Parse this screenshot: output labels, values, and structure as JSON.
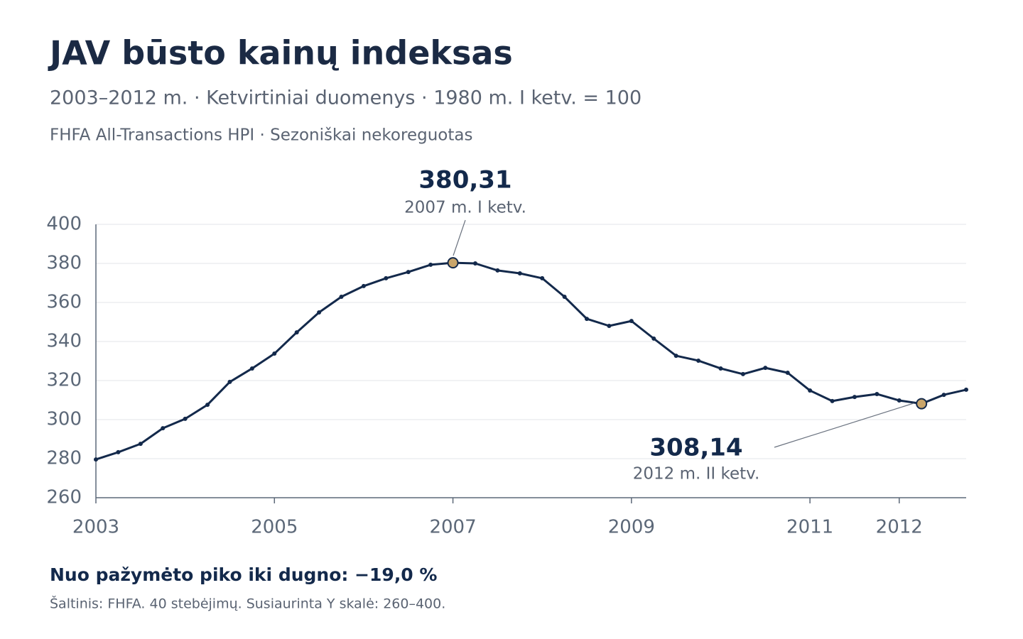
{
  "chart_data": {
    "type": "line",
    "title": "JAV būsto kainų indeksas",
    "subtitle": "2003–2012 m. · Ketvirtiniai duomenys · 1980 m. I ketv. = 100",
    "subtitle2": "FHFA All-Transactions HPI · Sezoniškai nekoreguotas",
    "x": [
      2003,
      2003.25,
      2003.5,
      2003.75,
      2004,
      2004.25,
      2004.5,
      2004.75,
      2005,
      2005.25,
      2005.5,
      2005.75,
      2006,
      2006.25,
      2006.5,
      2006.75,
      2007,
      2007.25,
      2007.5,
      2007.75,
      2008,
      2008.25,
      2008.5,
      2008.75,
      2009,
      2009.25,
      2009.5,
      2009.75,
      2010,
      2010.25,
      2010.5,
      2010.75,
      2011,
      2011.25,
      2011.5,
      2011.75,
      2012,
      2012.25,
      2012.5,
      2012.75
    ],
    "values": [
      279.6,
      283.3,
      287.6,
      295.6,
      300.4,
      307.6,
      319.3,
      326.2,
      333.8,
      344.7,
      354.9,
      362.9,
      368.4,
      372.4,
      375.6,
      379.3,
      380.31,
      380.0,
      376.4,
      374.9,
      372.4,
      362.9,
      351.6,
      348.0,
      350.5,
      341.5,
      332.7,
      330.2,
      326.2,
      323.3,
      326.5,
      324.0,
      314.9,
      309.5,
      311.6,
      313.1,
      309.8,
      308.14,
      312.7,
      315.3
    ],
    "color": "#13294b",
    "xlim": [
      2003,
      2012.75
    ],
    "xticks": [
      2003,
      2005,
      2007,
      2009,
      2011,
      2012
    ],
    "ylim": [
      260,
      400
    ],
    "yticks": [
      260,
      280,
      300,
      320,
      340,
      360,
      380,
      400
    ],
    "grid": true,
    "annotations": [
      {
        "x": 2007,
        "y": 380.31,
        "label": "380,31",
        "sublabel": "2007 m. I ketv."
      },
      {
        "x": 2012.25,
        "y": 308.14,
        "label": "308,14",
        "sublabel": "2012 m. II ketv."
      }
    ],
    "note": "Nuo pažymėto piko iki dugno: −19,0 %",
    "source": "Šaltinis: FHFA. 40 stebėjimų. Susiaurinta Y skalė: 260–400."
  }
}
